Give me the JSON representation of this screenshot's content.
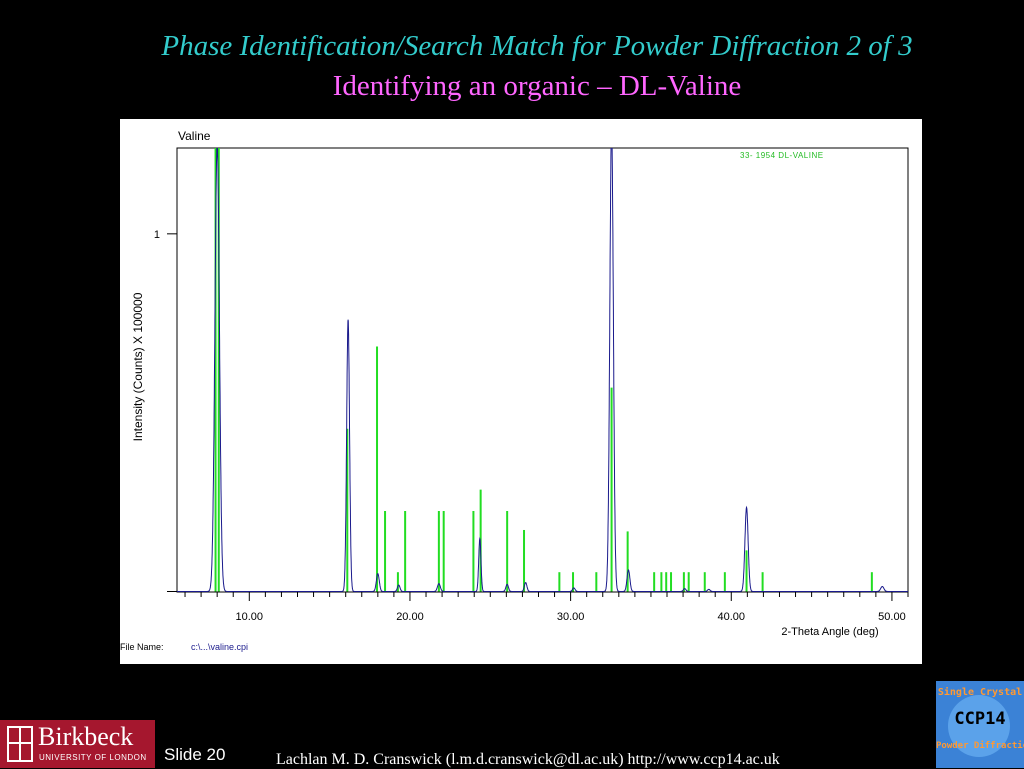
{
  "slide": {
    "title": "Phase Identification/Search Match for Powder Diffraction 2 of 3",
    "subtitle": "Identifying an organic – DL-Valine",
    "slide_label": "Slide 20",
    "footer": "Lachlan M. D. Cranswick (l.m.d.cranswick@dl.ac.uk) http://www.ccp14.ac.uk",
    "logo_left": {
      "name": "Birkbeck",
      "sub": "UNIVERSITY OF LONDON",
      "color": "#a5172e"
    },
    "logo_right": {
      "top": "Single Crystal",
      "mid": "CCP14",
      "bottom": "Powder Diffraction",
      "color": "#3b82d6"
    }
  },
  "chart_data": {
    "type": "line",
    "title": "Valine",
    "xlabel": "2-Theta Angle (deg)",
    "ylabel": "Intensity (Counts) X 100000",
    "xlim": [
      5.5,
      51.0
    ],
    "ylim": [
      0,
      1.24
    ],
    "x_ticks": [
      10,
      20,
      30,
      40,
      50
    ],
    "x_tick_labels": [
      "10.00",
      "20.00",
      "30.00",
      "40.00",
      "50.00"
    ],
    "y_ticks": [
      1
    ],
    "y_tick_labels": [
      "1"
    ],
    "file_name_label": "File Name:",
    "file_name": "c:\\...\\valine.cpi",
    "reference_label": "33- 1954  DL-VALINE",
    "series": [
      {
        "name": "",
        "kind": "pattern",
        "color": "#1a1a8c",
        "peaks": [
          {
            "x": 8.0,
            "h": 1.25,
            "w": 0.14
          },
          {
            "x": 16.15,
            "h": 0.76,
            "w": 0.09
          },
          {
            "x": 18.0,
            "h": 0.05,
            "w": 0.09
          },
          {
            "x": 19.3,
            "h": 0.018,
            "w": 0.08
          },
          {
            "x": 21.8,
            "h": 0.022,
            "w": 0.09
          },
          {
            "x": 24.35,
            "h": 0.148,
            "w": 0.07
          },
          {
            "x": 26.05,
            "h": 0.02,
            "w": 0.08
          },
          {
            "x": 27.2,
            "h": 0.025,
            "w": 0.08
          },
          {
            "x": 30.2,
            "h": 0.01,
            "w": 0.08
          },
          {
            "x": 32.55,
            "h": 1.3,
            "w": 0.11
          },
          {
            "x": 33.6,
            "h": 0.06,
            "w": 0.09
          },
          {
            "x": 37.1,
            "h": 0.008,
            "w": 0.08
          },
          {
            "x": 38.6,
            "h": 0.006,
            "w": 0.08
          },
          {
            "x": 40.95,
            "h": 0.235,
            "w": 0.1
          },
          {
            "x": 49.4,
            "h": 0.014,
            "w": 0.1
          }
        ]
      },
      {
        "name": "33- 1954  DL-VALINE",
        "kind": "stick",
        "color": "#22dd22",
        "x": [
          7.9,
          8.1,
          16.1,
          17.95,
          18.45,
          19.25,
          19.7,
          21.8,
          22.1,
          23.95,
          24.4,
          26.05,
          27.1,
          29.3,
          30.15,
          31.6,
          32.55,
          33.55,
          35.2,
          35.65,
          35.95,
          36.25,
          37.05,
          37.35,
          38.35,
          39.6,
          40.95,
          41.95,
          48.75
        ],
        "y": [
          1.3,
          1.3,
          0.455,
          0.685,
          0.225,
          0.054,
          0.225,
          0.225,
          0.225,
          0.225,
          0.285,
          0.225,
          0.172,
          0.054,
          0.054,
          0.054,
          0.57,
          0.168,
          0.054,
          0.054,
          0.054,
          0.054,
          0.054,
          0.054,
          0.054,
          0.054,
          0.115,
          0.054,
          0.054
        ]
      }
    ]
  }
}
